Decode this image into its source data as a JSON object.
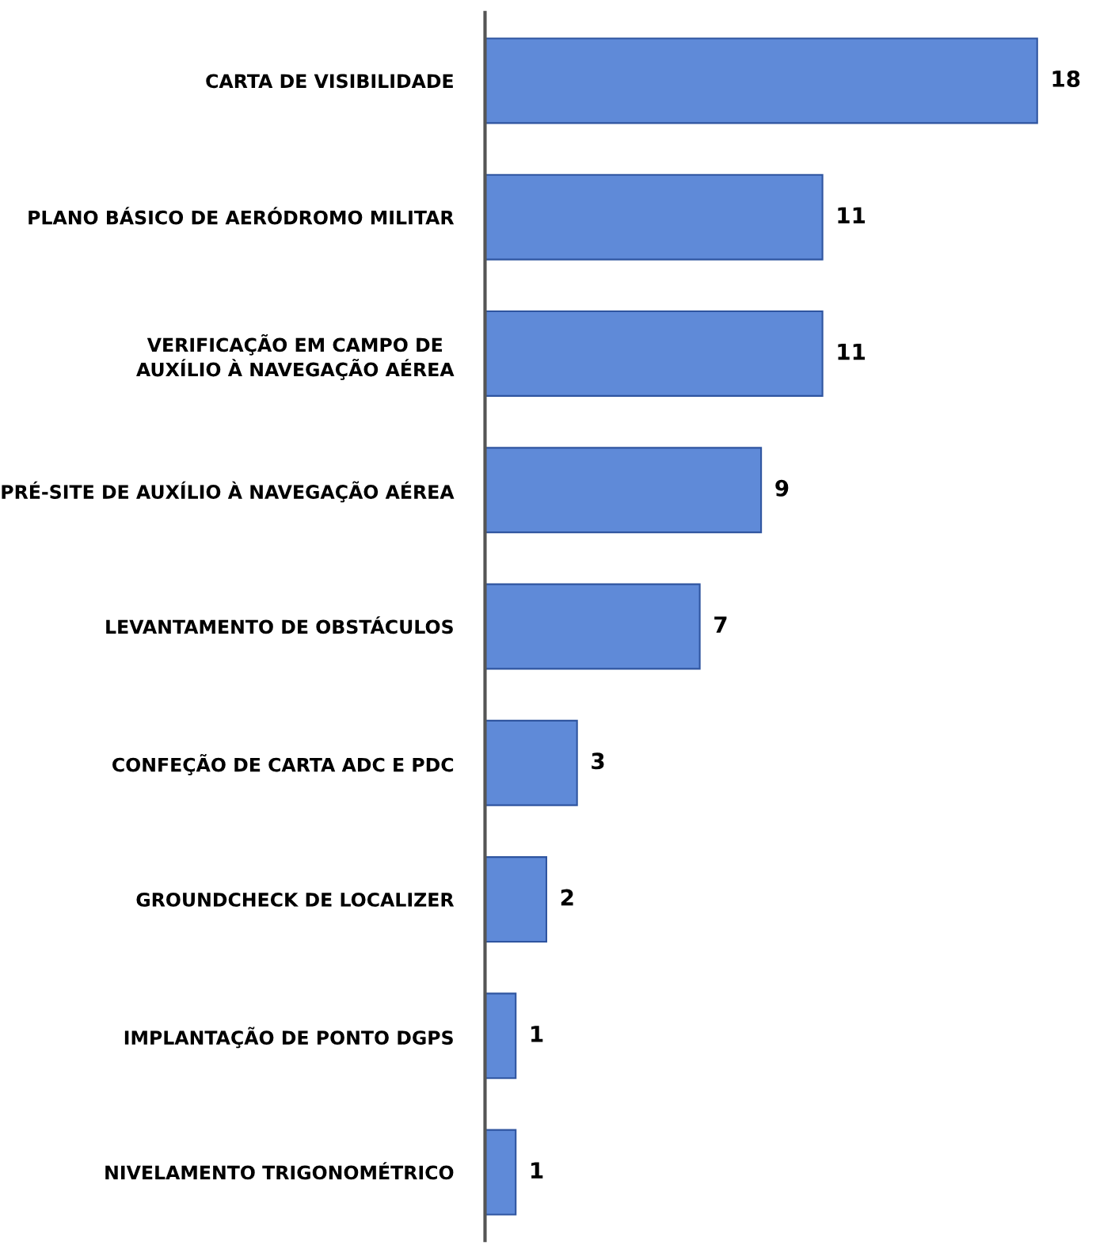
{
  "chart_data": {
    "type": "bar",
    "orientation": "horizontal",
    "categories": [
      "CARTA DE VISIBILIDADE",
      "PLANO BÁSICO DE AERÓDROMO MILITAR",
      "VERIFICAÇÃO EM CAMPO DE\nAUXÍLIO À NAVEGAÇÃO AÉREA",
      "PRÉ-SITE DE AUXÍLIO À NAVEGAÇÃO AÉREA",
      "LEVANTAMENTO DE OBSTÁCULOS",
      "CONFEÇÃO DE CARTA ADC E PDC",
      "GROUNDCHECK DE LOCALIZER",
      "IMPLANTAÇÃO DE PONTO DGPS",
      "NIVELAMENTO TRIGONOMÉTRICO"
    ],
    "values": [
      18,
      11,
      11,
      9,
      7,
      3,
      2,
      1,
      1
    ],
    "color": "#5f8ad8",
    "data_labels": true,
    "tick_labels": "y"
  }
}
